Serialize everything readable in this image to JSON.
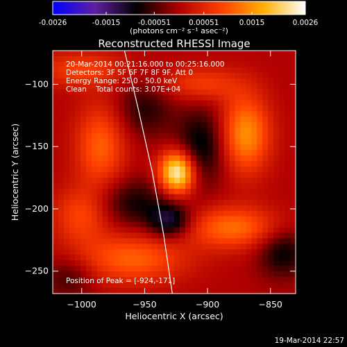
{
  "chart_data": {
    "type": "heatmap",
    "title": "Reconstructed RHESSI Image",
    "xlabel": "Heliocentric X (arcsec)",
    "ylabel": "Heliocentric Y (arcsec)",
    "xlim": [
      -1023,
      -830
    ],
    "ylim": [
      -268,
      -73
    ],
    "xticks": [
      -1000,
      -950,
      -900,
      -850
    ],
    "yticks": [
      -100,
      -150,
      -200,
      -250
    ],
    "colorbar": {
      "title": "(photons cm⁻² s⁻¹ asec⁻²)",
      "range": [
        -0.0026,
        0.0026
      ],
      "ticks": [
        "-0.0026",
        "-0.0015",
        "-0.00051",
        "0.00051",
        "0.0015",
        "0.0026"
      ],
      "colormap": [
        "#0000ff",
        "#6020a0",
        "#000000",
        "#b00000",
        "#ff4000",
        "#ffb000",
        "#ffffff"
      ]
    },
    "annotations": [
      "20-Mar-2014 00:21:16.000 to 00:25:16.000",
      "Detectors: 3F 5F 6F 7F 8F 9F, Att 0",
      "Energy Range: 25.0 - 50.0 keV",
      "Clean    Total counts: 3.07E+04"
    ],
    "peak_text": "Position of Peak = [-924,-171]",
    "peak": {
      "x": -924,
      "y": -171,
      "value": 0.0026
    },
    "limb_curve": [
      [
        -966,
        -73
      ],
      [
        -955,
        -120
      ],
      [
        -944,
        -170
      ],
      [
        -935,
        -220
      ],
      [
        -928,
        -268
      ]
    ],
    "sources": [
      {
        "x": -924,
        "y": -171,
        "sx": 10,
        "sy": 12,
        "amp": 0.0026
      },
      {
        "x": -870,
        "y": -140,
        "sx": 14,
        "sy": 22,
        "amp": 0.0015
      },
      {
        "x": -985,
        "y": -150,
        "sx": 14,
        "sy": 24,
        "amp": 0.0011
      },
      {
        "x": -880,
        "y": -215,
        "sx": 26,
        "sy": 12,
        "amp": 0.0012
      },
      {
        "x": -960,
        "y": -240,
        "sx": 30,
        "sy": 14,
        "amp": 0.0011
      },
      {
        "x": -1000,
        "y": -205,
        "sx": 16,
        "sy": 16,
        "amp": 0.0009
      },
      {
        "x": -905,
        "y": -100,
        "sx": 22,
        "sy": 10,
        "amp": 0.0008
      },
      {
        "x": -1000,
        "y": -88,
        "sx": 24,
        "sy": 10,
        "amp": 0.0008
      },
      {
        "x": -930,
        "y": -210,
        "sx": 12,
        "sy": 10,
        "amp": -0.0012
      },
      {
        "x": -905,
        "y": -150,
        "sx": 14,
        "sy": 22,
        "amp": -0.001
      },
      {
        "x": -960,
        "y": -195,
        "sx": 22,
        "sy": 14,
        "amp": -0.0008
      },
      {
        "x": -840,
        "y": -235,
        "sx": 14,
        "sy": 14,
        "amp": -0.0009
      },
      {
        "x": -950,
        "y": -120,
        "sx": 16,
        "sy": 16,
        "amp": -0.0007
      },
      {
        "x": -1010,
        "y": -255,
        "sx": 14,
        "sy": 12,
        "amp": -0.0006
      }
    ]
  },
  "footer": {
    "timestamp": "19-Mar-2014 22:57"
  }
}
